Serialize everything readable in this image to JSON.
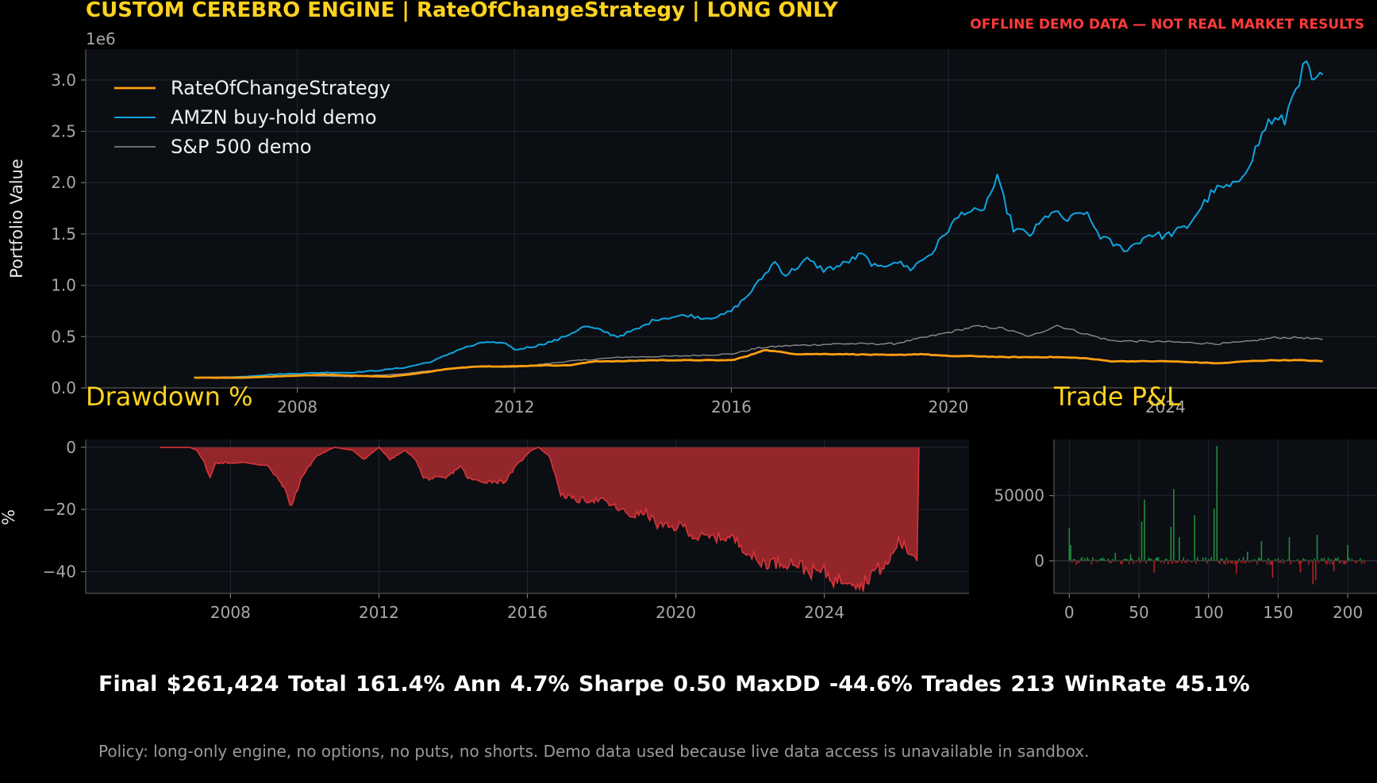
{
  "header": {
    "title": "CUSTOM CEREBRO ENGINE | RateOfChangeStrategy | LONG ONLY",
    "warning": "OFFLINE DEMO DATA — NOT REAL MARKET RESULTS"
  },
  "colors": {
    "background": "#000000",
    "plot_bg": "#0b0e13",
    "grid": "#222831",
    "accent": "#ffd21f",
    "warning": "#ff3b3b",
    "strategy": "#ff9f10",
    "amzn": "#0ea5e0",
    "sp500": "#8a8a8a",
    "drawdown_fill": "#93262a",
    "drawdown_line": "#d8343a",
    "pnl_positive": "#1f8f3a",
    "pnl_negative": "#b22222"
  },
  "summary": {
    "stats_line": "Final $261,424   Total 161.4%   Ann 4.7%   Sharpe 0.50   MaxDD -44.6%   Trades 213   WinRate 45.1%",
    "policy": "Policy: long-only engine, no options, no puts, no shorts. Demo data used because live data access is unavailable in sandbox."
  },
  "chart_data": [
    {
      "id": "equity",
      "type": "line",
      "title": "",
      "xlabel": "",
      "ylabel": "Portfolio Value",
      "y_offset_label": "1e6",
      "xlim": [
        2004.1,
        2027.9
      ],
      "ylim": [
        0,
        3.3
      ],
      "xticks": [
        2008,
        2012,
        2016,
        2020,
        2024
      ],
      "xtick_labels": [
        "2008",
        "2012",
        "2016",
        "2020",
        "2024"
      ],
      "yticks": [
        0.0,
        0.5,
        1.0,
        1.5,
        2.0,
        2.5,
        3.0
      ],
      "ytick_labels": [
        "0.0",
        "0.5",
        "1.0",
        "1.5",
        "2.0",
        "2.5",
        "3.0"
      ],
      "grid": true,
      "legend": "top-left",
      "series": [
        {
          "name": "RateOfChangeStrategy",
          "color": "#ff9f10",
          "points": [
            [
              2006.1,
              0.1
            ],
            [
              2007.0,
              0.1
            ],
            [
              2007.5,
              0.11
            ],
            [
              2008.0,
              0.12
            ],
            [
              2008.5,
              0.13
            ],
            [
              2009.0,
              0.12
            ],
            [
              2009.7,
              0.11
            ],
            [
              2010.2,
              0.14
            ],
            [
              2010.7,
              0.18
            ],
            [
              2011.3,
              0.21
            ],
            [
              2012.0,
              0.21
            ],
            [
              2012.5,
              0.22
            ],
            [
              2013.0,
              0.22
            ],
            [
              2013.5,
              0.26
            ],
            [
              2014.0,
              0.26
            ],
            [
              2014.5,
              0.27
            ],
            [
              2015.0,
              0.27
            ],
            [
              2015.5,
              0.27
            ],
            [
              2016.0,
              0.27
            ],
            [
              2016.3,
              0.31
            ],
            [
              2016.6,
              0.37
            ],
            [
              2016.9,
              0.35
            ],
            [
              2017.2,
              0.33
            ],
            [
              2018.0,
              0.33
            ],
            [
              2019.0,
              0.32
            ],
            [
              2019.5,
              0.33
            ],
            [
              2020.0,
              0.31
            ],
            [
              2020.5,
              0.31
            ],
            [
              2021.0,
              0.3
            ],
            [
              2022.0,
              0.3
            ],
            [
              2022.5,
              0.29
            ],
            [
              2023.0,
              0.26
            ],
            [
              2023.5,
              0.26
            ],
            [
              2024.0,
              0.26
            ],
            [
              2024.5,
              0.25
            ],
            [
              2025.0,
              0.24
            ],
            [
              2025.5,
              0.26
            ],
            [
              2026.0,
              0.27
            ],
            [
              2026.5,
              0.27
            ],
            [
              2026.9,
              0.26
            ]
          ]
        },
        {
          "name": "AMZN buy-hold demo",
          "color": "#0ea5e0",
          "points": [
            [
              2006.1,
              0.1
            ],
            [
              2006.6,
              0.1
            ],
            [
              2007.0,
              0.11
            ],
            [
              2007.5,
              0.13
            ],
            [
              2008.0,
              0.14
            ],
            [
              2008.5,
              0.15
            ],
            [
              2009.0,
              0.15
            ],
            [
              2009.5,
              0.17
            ],
            [
              2010.0,
              0.2
            ],
            [
              2010.5,
              0.26
            ],
            [
              2011.0,
              0.38
            ],
            [
              2011.5,
              0.45
            ],
            [
              2011.9,
              0.42
            ],
            [
              2012.0,
              0.37
            ],
            [
              2012.4,
              0.41
            ],
            [
              2012.8,
              0.47
            ],
            [
              2013.0,
              0.52
            ],
            [
              2013.3,
              0.6
            ],
            [
              2013.6,
              0.56
            ],
            [
              2013.9,
              0.5
            ],
            [
              2014.3,
              0.58
            ],
            [
              2014.6,
              0.67
            ],
            [
              2014.9,
              0.69
            ],
            [
              2015.2,
              0.71
            ],
            [
              2015.5,
              0.68
            ],
            [
              2015.8,
              0.7
            ],
            [
              2016.0,
              0.75
            ],
            [
              2016.3,
              0.9
            ],
            [
              2016.5,
              1.03
            ],
            [
              2016.8,
              1.23
            ],
            [
              2017.0,
              1.1
            ],
            [
              2017.4,
              1.25
            ],
            [
              2017.7,
              1.15
            ],
            [
              2018.0,
              1.19
            ],
            [
              2018.4,
              1.3
            ],
            [
              2018.7,
              1.16
            ],
            [
              2019.0,
              1.24
            ],
            [
              2019.3,
              1.16
            ],
            [
              2019.7,
              1.32
            ],
            [
              2020.0,
              1.55
            ],
            [
              2020.3,
              1.73
            ],
            [
              2020.6,
              1.7
            ],
            [
              2020.9,
              2.03
            ],
            [
              2021.2,
              1.55
            ],
            [
              2021.5,
              1.49
            ],
            [
              2021.9,
              1.72
            ],
            [
              2022.2,
              1.63
            ],
            [
              2022.5,
              1.72
            ],
            [
              2022.8,
              1.48
            ],
            [
              2023.1,
              1.38
            ],
            [
              2023.3,
              1.35
            ],
            [
              2023.7,
              1.5
            ],
            [
              2024.0,
              1.48
            ],
            [
              2024.4,
              1.57
            ],
            [
              2024.6,
              1.72
            ],
            [
              2024.9,
              1.93
            ],
            [
              2025.3,
              1.97
            ],
            [
              2025.6,
              2.25
            ],
            [
              2025.9,
              2.6
            ],
            [
              2026.2,
              2.6
            ],
            [
              2026.4,
              2.95
            ],
            [
              2026.6,
              3.15
            ],
            [
              2026.75,
              2.95
            ],
            [
              2026.9,
              3.05
            ]
          ]
        },
        {
          "name": "S&P 500 demo",
          "color": "#8a8a8a",
          "points": [
            [
              2006.1,
              0.1
            ],
            [
              2007.0,
              0.11
            ],
            [
              2008.0,
              0.12
            ],
            [
              2009.0,
              0.11
            ],
            [
              2010.0,
              0.14
            ],
            [
              2011.0,
              0.2
            ],
            [
              2011.5,
              0.21
            ],
            [
              2012.0,
              0.2
            ],
            [
              2013.0,
              0.26
            ],
            [
              2014.0,
              0.3
            ],
            [
              2015.0,
              0.31
            ],
            [
              2016.0,
              0.33
            ],
            [
              2016.5,
              0.39
            ],
            [
              2017.0,
              0.41
            ],
            [
              2018.0,
              0.43
            ],
            [
              2019.0,
              0.43
            ],
            [
              2020.0,
              0.54
            ],
            [
              2020.5,
              0.6
            ],
            [
              2021.0,
              0.58
            ],
            [
              2021.5,
              0.5
            ],
            [
              2022.0,
              0.61
            ],
            [
              2022.5,
              0.53
            ],
            [
              2023.0,
              0.46
            ],
            [
              2024.0,
              0.45
            ],
            [
              2025.0,
              0.43
            ],
            [
              2025.5,
              0.45
            ],
            [
              2026.0,
              0.49
            ],
            [
              2026.5,
              0.49
            ],
            [
              2026.9,
              0.47
            ]
          ]
        }
      ]
    },
    {
      "id": "drawdown",
      "type": "area",
      "title": "Drawdown %",
      "xlabel": "",
      "ylabel": "%",
      "xlim": [
        2004.1,
        2027.9
      ],
      "ylim": [
        -47,
        2.5
      ],
      "xticks": [
        2008,
        2012,
        2016,
        2020,
        2024
      ],
      "xtick_labels": [
        "2008",
        "2012",
        "2016",
        "2020",
        "2024"
      ],
      "yticks": [
        0,
        -20,
        -40
      ],
      "ytick_labels": [
        "0",
        "−20",
        "−40"
      ],
      "grid": true,
      "points": [
        [
          2006.1,
          0
        ],
        [
          2006.9,
          0
        ],
        [
          2007.1,
          -1
        ],
        [
          2007.3,
          -5
        ],
        [
          2007.45,
          -10
        ],
        [
          2007.6,
          -5
        ],
        [
          2008.0,
          -5
        ],
        [
          2008.5,
          -5
        ],
        [
          2009.0,
          -6
        ],
        [
          2009.4,
          -12
        ],
        [
          2009.65,
          -19
        ],
        [
          2009.9,
          -10
        ],
        [
          2010.3,
          -3
        ],
        [
          2010.8,
          0
        ],
        [
          2011.3,
          -1
        ],
        [
          2011.6,
          -4
        ],
        [
          2012.0,
          0
        ],
        [
          2012.3,
          -4
        ],
        [
          2012.7,
          -1
        ],
        [
          2013.0,
          -4
        ],
        [
          2013.2,
          -10
        ],
        [
          2013.8,
          -10
        ],
        [
          2014.2,
          -6
        ],
        [
          2014.4,
          -10
        ],
        [
          2014.7,
          -11
        ],
        [
          2015.0,
          -11
        ],
        [
          2015.4,
          -11
        ],
        [
          2015.7,
          -6
        ],
        [
          2016.1,
          -1
        ],
        [
          2016.3,
          0
        ],
        [
          2016.6,
          -3
        ],
        [
          2016.9,
          -15
        ],
        [
          2017.3,
          -17
        ],
        [
          2018.0,
          -17
        ],
        [
          2018.8,
          -22
        ],
        [
          2019.2,
          -21
        ],
        [
          2019.5,
          -25
        ],
        [
          2019.9,
          -26
        ],
        [
          2020.2,
          -25
        ],
        [
          2020.5,
          -29
        ],
        [
          2021.0,
          -29
        ],
        [
          2021.5,
          -29
        ],
        [
          2021.9,
          -33
        ],
        [
          2022.2,
          -37
        ],
        [
          2022.8,
          -37
        ],
        [
          2023.2,
          -37
        ],
        [
          2023.6,
          -40
        ],
        [
          2024.0,
          -40
        ],
        [
          2024.3,
          -43
        ],
        [
          2024.7,
          -42
        ],
        [
          2025.0,
          -44.6
        ],
        [
          2025.3,
          -40
        ],
        [
          2025.7,
          -38
        ],
        [
          2026.0,
          -30
        ],
        [
          2026.3,
          -34
        ],
        [
          2026.5,
          -35
        ],
        [
          2026.55,
          0
        ]
      ]
    },
    {
      "id": "trade_pnl",
      "type": "bar",
      "title": "Trade P&L",
      "xlabel": "",
      "ylabel": "",
      "xlim": [
        -11,
        221
      ],
      "ylim": [
        -25000,
        93000
      ],
      "xticks": [
        0,
        50,
        100,
        150,
        200
      ],
      "xtick_labels": [
        "0",
        "50",
        "100",
        "150",
        "200"
      ],
      "yticks": [
        0,
        50000
      ],
      "ytick_labels": [
        "0",
        "50000"
      ],
      "grid": true,
      "trade_count": 213,
      "spikes": [
        [
          0,
          25000
        ],
        [
          1,
          12000
        ],
        [
          52,
          30000
        ],
        [
          54,
          47000
        ],
        [
          73,
          26000
        ],
        [
          75,
          55000
        ],
        [
          79,
          18000
        ],
        [
          90,
          35000
        ],
        [
          106,
          88000
        ],
        [
          104,
          40000
        ],
        [
          138,
          15000
        ],
        [
          158,
          18000
        ],
        [
          175,
          -18000
        ],
        [
          177,
          -15000
        ],
        [
          178,
          20000
        ],
        [
          200,
          12000
        ],
        [
          61,
          -9000
        ],
        [
          120,
          -10000
        ],
        [
          146,
          -13000
        ],
        [
          166,
          -9000
        ],
        [
          190,
          -8000
        ],
        [
          33,
          6000
        ],
        [
          44,
          5000
        ],
        [
          128,
          7000
        ]
      ]
    }
  ]
}
